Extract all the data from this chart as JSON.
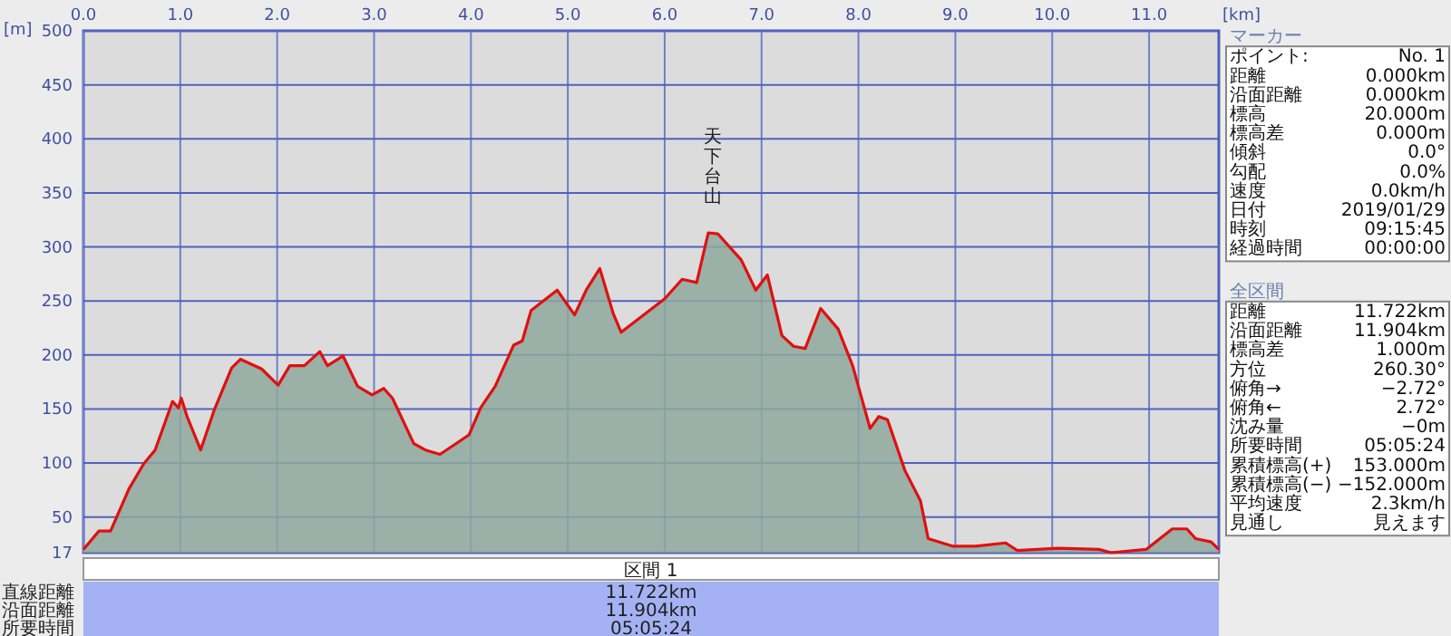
{
  "chart_data": [
    {
      "type": "area",
      "xlabel": "[km]",
      "ylabel": "[m]",
      "xlim": [
        0,
        11.72
      ],
      "ylim": [
        17,
        500
      ],
      "grid": true,
      "xticks": [
        {
          "value": 0,
          "label": "0.0"
        },
        {
          "value": 1,
          "label": "1.0"
        },
        {
          "value": 2,
          "label": "2.0"
        },
        {
          "value": 3,
          "label": "3.0"
        },
        {
          "value": 4,
          "label": "4.0"
        },
        {
          "value": 5,
          "label": "5.0"
        },
        {
          "value": 6,
          "label": "6.0"
        },
        {
          "value": 7,
          "label": "7.0"
        },
        {
          "value": 8,
          "label": "8.0"
        },
        {
          "value": 9,
          "label": "9.0"
        },
        {
          "value": 10,
          "label": "10.0"
        },
        {
          "value": 11,
          "label": "11.0"
        }
      ],
      "yticks": [
        17,
        50,
        100,
        150,
        200,
        250,
        300,
        350,
        400,
        450,
        500
      ],
      "x": [
        0,
        0.16,
        0.28,
        0.47,
        0.62,
        0.74,
        0.92,
        0.98,
        1.01,
        1.07,
        1.21,
        1.35,
        1.53,
        1.62,
        1.84,
        2.01,
        2.13,
        2.28,
        2.44,
        2.52,
        2.68,
        2.83,
        2.98,
        3.1,
        3.19,
        3.41,
        3.53,
        3.68,
        3.98,
        4.1,
        4.25,
        4.44,
        4.53,
        4.62,
        4.89,
        5.07,
        5.19,
        5.33,
        5.47,
        5.55,
        6.0,
        6.18,
        6.33,
        6.45,
        6.55,
        6.79,
        6.94,
        7.06,
        7.21,
        7.33,
        7.45,
        7.61,
        7.79,
        7.94,
        8.12,
        8.21,
        8.3,
        8.48,
        8.64,
        8.72,
        8.97,
        9.21,
        9.52,
        9.64,
        10.06,
        10.48,
        10.61,
        10.97,
        11.24,
        11.39,
        11.48,
        11.64,
        11.72
      ],
      "series": [
        {
          "color": "#e01010",
          "values": [
            20,
            37,
            37,
            76,
            99,
            112,
            157,
            151,
            160,
            143,
            112,
            149,
            188,
            196,
            187,
            172,
            190,
            190,
            203,
            190,
            199,
            171,
            163,
            169,
            160,
            118,
            112,
            108,
            126,
            151,
            171,
            209,
            213,
            241,
            260,
            237,
            260,
            280,
            238,
            221,
            252,
            270,
            267,
            313,
            312,
            288,
            260,
            274,
            218,
            208,
            206,
            243,
            224,
            190,
            132,
            143,
            140,
            93,
            65,
            30,
            23,
            23,
            26,
            19,
            21,
            20,
            17,
            20,
            39,
            39,
            30,
            27,
            20
          ]
        }
      ],
      "annotations": [
        {
          "text": "天下台山",
          "x": 6.5,
          "y": 313
        }
      ]
    },
    {
      "type": "other",
      "title": "マーカー",
      "annotations": [
        "ポイント:",
        "No. 1",
        "距離",
        "0.000km",
        "沿面距離",
        "0.000km",
        "標高",
        "20.000m",
        "標高差",
        "0.000m",
        "傾斜",
        "0.0°",
        "勾配",
        "0.0%",
        "速度",
        "0.0km/h",
        "日付",
        "2019/01/29",
        "時刻",
        "09:15:45",
        "経過時間",
        "00:00:00"
      ]
    },
    {
      "type": "other",
      "title": "全区間",
      "annotations": [
        "距離",
        "11.722km",
        "沿面距離",
        "11.904km",
        "標高差",
        "1.000m",
        "方位",
        "260.30°",
        "俯角→",
        "−2.72°",
        "俯角←",
        "2.72°",
        "沈み量",
        "−0m",
        "所要時間",
        "05:05:24",
        "累積標高(+)",
        "153.000m",
        "累積標高(−)",
        "−152.000m",
        "平均速度",
        "2.3km/h",
        "見通し",
        "見えます"
      ]
    },
    {
      "type": "other",
      "title": "区間 1",
      "annotations": [
        "直線距離",
        "11.722km",
        "沿面距離",
        "11.904km",
        "所要時間",
        "05:05:24"
      ]
    }
  ]
}
